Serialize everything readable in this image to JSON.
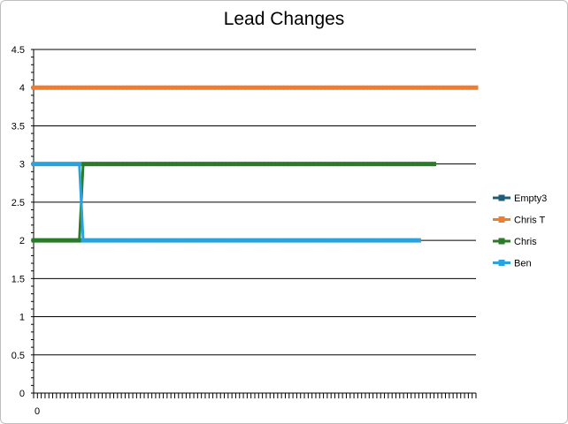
{
  "chart_data": {
    "type": "line",
    "title": "Lead Changes",
    "xlabel": "",
    "ylabel": "",
    "ylim": [
      0,
      4.5
    ],
    "y_ticks": [
      "0",
      "0.5",
      "1",
      "1.5",
      "2",
      "2.5",
      "3",
      "3.5",
      "4",
      "4.5"
    ],
    "x_tick_labels": [
      "0"
    ],
    "x_points": 117,
    "grid": true,
    "legend_position": "right",
    "series": [
      {
        "name": "Empty3",
        "color": "#1f5d7a",
        "values": []
      },
      {
        "name": "Chris T",
        "color": "#f07c30",
        "segments": [
          {
            "from": 0,
            "to": 116,
            "value": 4
          }
        ]
      },
      {
        "name": "Chris",
        "color": "#2a7a2a",
        "segments": [
          {
            "from": 0,
            "to": 12,
            "value": 2
          },
          {
            "from": 13,
            "to": 105,
            "value": 3
          }
        ]
      },
      {
        "name": "Ben",
        "color": "#2aa3dc",
        "segments": [
          {
            "from": 0,
            "to": 12,
            "value": 3
          },
          {
            "from": 13,
            "to": 101,
            "value": 2
          }
        ]
      }
    ]
  }
}
